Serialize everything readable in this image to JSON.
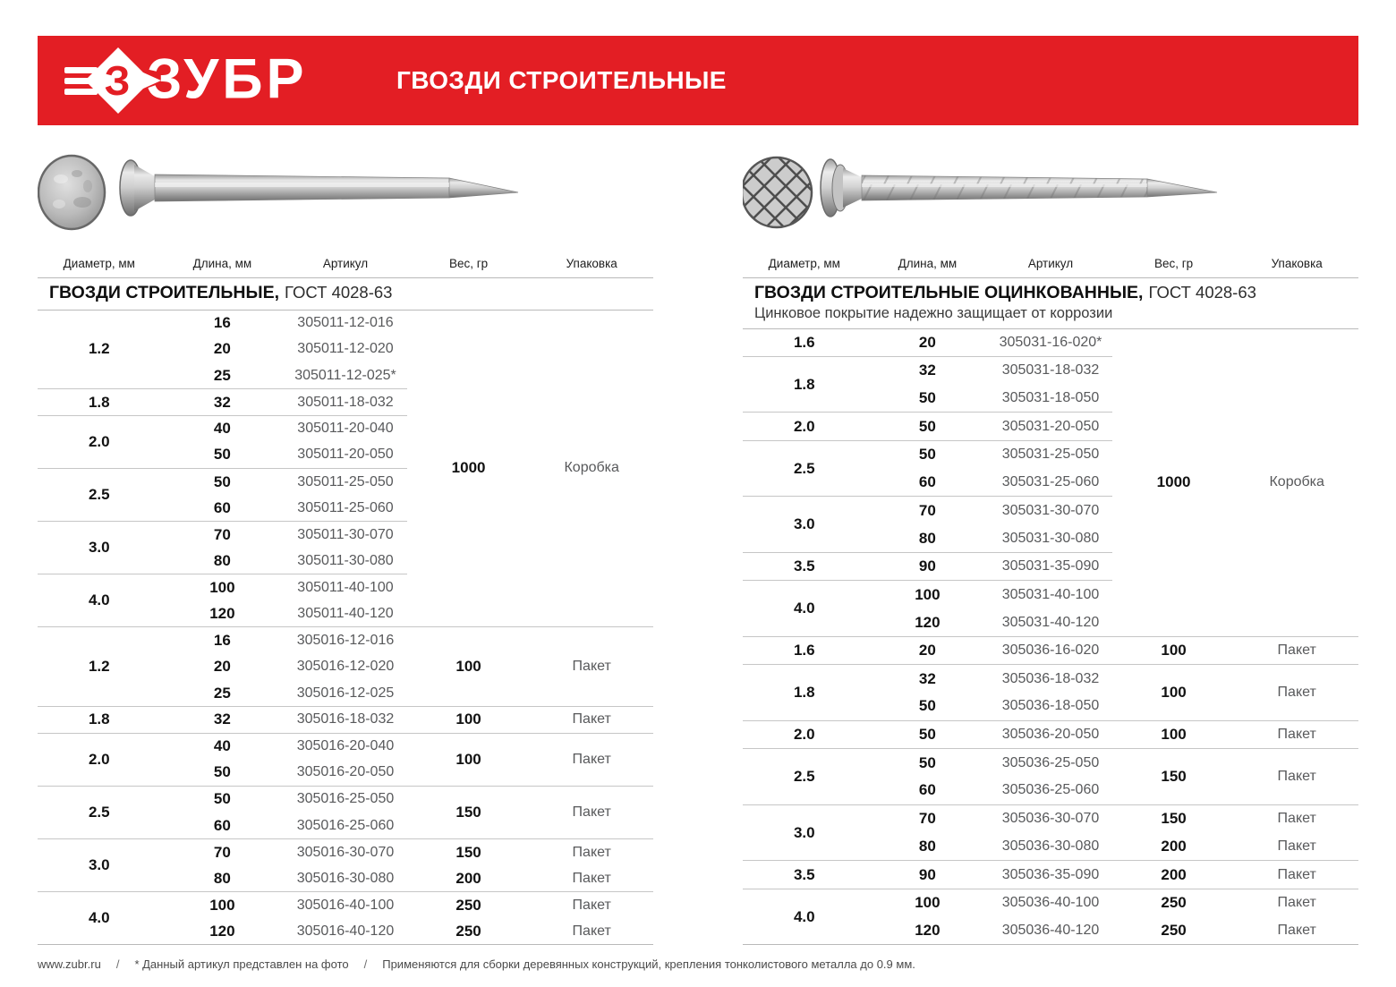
{
  "banner": {
    "brand": "ЗУБР",
    "title": "ГВОЗДИ СТРОИТЕЛЬНЫЕ",
    "color": "#e31e24"
  },
  "columns": [
    "Диаметр, мм",
    "Длина, мм",
    "Артикул",
    "Вес, гр",
    "Упаковка"
  ],
  "tables": [
    {
      "name": "construction-nails-table",
      "title_bold": "ГВОЗДИ СТРОИТЕЛЬНЫЕ,",
      "title_rest": "ГОСТ 4028-63",
      "subtitle": "",
      "sections": [
        {
          "weight": "1000",
          "package": "Коробка",
          "groups": [
            {
              "dia": "1.2",
              "rows": [
                [
                  "16",
                  "305011-12-016"
                ],
                [
                  "20",
                  "305011-12-020"
                ],
                [
                  "25",
                  "305011-12-025*"
                ]
              ]
            },
            {
              "dia": "1.8",
              "rows": [
                [
                  "32",
                  "305011-18-032"
                ]
              ]
            },
            {
              "dia": "2.0",
              "rows": [
                [
                  "40",
                  "305011-20-040"
                ],
                [
                  "50",
                  "305011-20-050"
                ]
              ]
            },
            {
              "dia": "2.5",
              "rows": [
                [
                  "50",
                  "305011-25-050"
                ],
                [
                  "60",
                  "305011-25-060"
                ]
              ]
            },
            {
              "dia": "3.0",
              "rows": [
                [
                  "70",
                  "305011-30-070"
                ],
                [
                  "80",
                  "305011-30-080"
                ]
              ]
            },
            {
              "dia": "4.0",
              "rows": [
                [
                  "100",
                  "305011-40-100"
                ],
                [
                  "120",
                  "305011-40-120"
                ]
              ]
            }
          ]
        },
        {
          "groups": [
            {
              "dia": "1.2",
              "weight": "100",
              "package": "Пакет",
              "rows": [
                [
                  "16",
                  "305016-12-016"
                ],
                [
                  "20",
                  "305016-12-020"
                ],
                [
                  "25",
                  "305016-12-025"
                ]
              ]
            },
            {
              "dia": "1.8",
              "weight": "100",
              "package": "Пакет",
              "rows": [
                [
                  "32",
                  "305016-18-032"
                ]
              ]
            },
            {
              "dia": "2.0",
              "weight": "100",
              "package": "Пакет",
              "rows": [
                [
                  "40",
                  "305016-20-040"
                ],
                [
                  "50",
                  "305016-20-050"
                ]
              ]
            },
            {
              "dia": "2.5",
              "weight": "150",
              "package": "Пакет",
              "rows": [
                [
                  "50",
                  "305016-25-050"
                ],
                [
                  "60",
                  "305016-25-060"
                ]
              ]
            },
            {
              "dia": "3.0",
              "rows": [
                [
                  "70",
                  "305016-30-070",
                  "150",
                  "Пакет"
                ],
                [
                  "80",
                  "305016-30-080",
                  "200",
                  "Пакет"
                ]
              ]
            },
            {
              "dia": "4.0",
              "rows": [
                [
                  "100",
                  "305016-40-100",
                  "250",
                  "Пакет"
                ],
                [
                  "120",
                  "305016-40-120",
                  "250",
                  "Пакет"
                ]
              ]
            }
          ]
        }
      ]
    },
    {
      "name": "galvanized-nails-table",
      "title_bold": "ГВОЗДИ СТРОИТЕЛЬНЫЕ ОЦИНКОВАННЫЕ,",
      "title_rest": "ГОСТ 4028-63",
      "subtitle": "Цинковое покрытие надежно защищает от коррозии",
      "sections": [
        {
          "weight": "1000",
          "package": "Коробка",
          "groups": [
            {
              "dia": "1.6",
              "rows": [
                [
                  "20",
                  "305031-16-020*"
                ]
              ]
            },
            {
              "dia": "1.8",
              "rows": [
                [
                  "32",
                  "305031-18-032"
                ],
                [
                  "50",
                  "305031-18-050"
                ]
              ]
            },
            {
              "dia": "2.0",
              "rows": [
                [
                  "50",
                  "305031-20-050"
                ]
              ]
            },
            {
              "dia": "2.5",
              "rows": [
                [
                  "50",
                  "305031-25-050"
                ],
                [
                  "60",
                  "305031-25-060"
                ]
              ]
            },
            {
              "dia": "3.0",
              "rows": [
                [
                  "70",
                  "305031-30-070"
                ],
                [
                  "80",
                  "305031-30-080"
                ]
              ]
            },
            {
              "dia": "3.5",
              "rows": [
                [
                  "90",
                  "305031-35-090"
                ]
              ]
            },
            {
              "dia": "4.0",
              "rows": [
                [
                  "100",
                  "305031-40-100"
                ],
                [
                  "120",
                  "305031-40-120"
                ]
              ]
            }
          ]
        },
        {
          "groups": [
            {
              "dia": "1.6",
              "weight": "100",
              "package": "Пакет",
              "rows": [
                [
                  "20",
                  "305036-16-020"
                ]
              ]
            },
            {
              "dia": "1.8",
              "weight": "100",
              "package": "Пакет",
              "rows": [
                [
                  "32",
                  "305036-18-032"
                ],
                [
                  "50",
                  "305036-18-050"
                ]
              ]
            },
            {
              "dia": "2.0",
              "weight": "100",
              "package": "Пакет",
              "rows": [
                [
                  "50",
                  "305036-20-050"
                ]
              ]
            },
            {
              "dia": "2.5",
              "weight": "150",
              "package": "Пакет",
              "rows": [
                [
                  "50",
                  "305036-25-050"
                ],
                [
                  "60",
                  "305036-25-060"
                ]
              ]
            },
            {
              "dia": "3.0",
              "rows": [
                [
                  "70",
                  "305036-30-070",
                  "150",
                  "Пакет"
                ],
                [
                  "80",
                  "305036-30-080",
                  "200",
                  "Пакет"
                ]
              ]
            },
            {
              "dia": "3.5",
              "weight": "200",
              "package": "Пакет",
              "rows": [
                [
                  "90",
                  "305036-35-090"
                ]
              ]
            },
            {
              "dia": "4.0",
              "rows": [
                [
                  "100",
                  "305036-40-100",
                  "250",
                  "Пакет"
                ],
                [
                  "120",
                  "305036-40-120",
                  "250",
                  "Пакет"
                ]
              ]
            }
          ]
        }
      ]
    }
  ],
  "footer": {
    "site": "www.zubr.ru",
    "separator": "/",
    "note_photo": "* Данный артикул представлен на фото",
    "note_usage": "Применяются для сборки деревянных конструкций, крепления тонколистового металла до 0.9 мм."
  }
}
